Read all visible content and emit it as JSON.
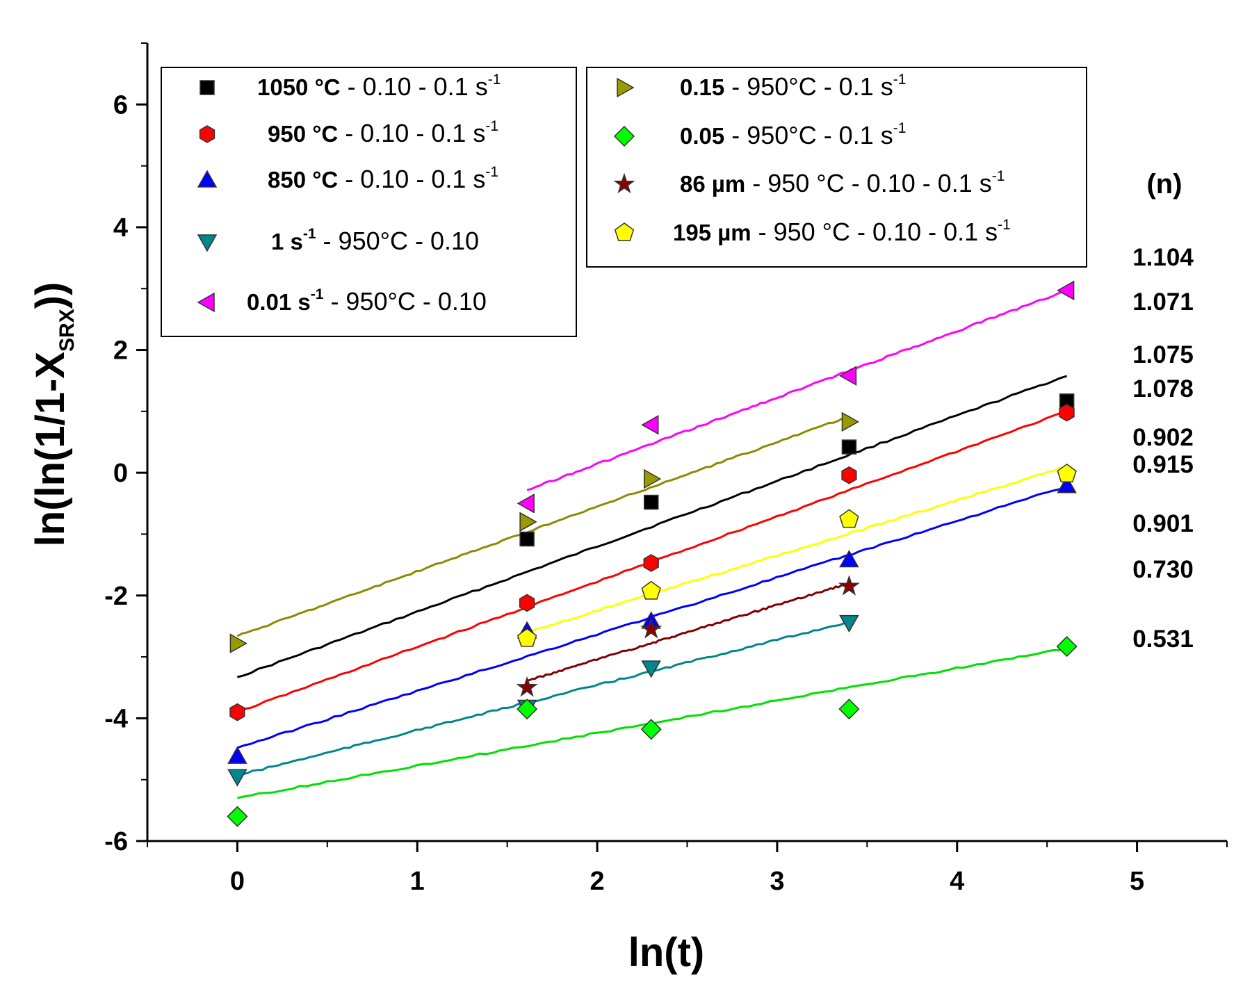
{
  "chart_data": {
    "type": "scatter",
    "xlabel": "ln(t)",
    "ylabel_main": "ln(ln(1/1-X",
    "ylabel_sub": "SRX",
    "ylabel_end": "))",
    "xlim": [
      -0.5,
      5.5
    ],
    "ylim": [
      -6,
      7
    ],
    "xticks": [
      "0",
      "1",
      "2",
      "3",
      "4",
      "5"
    ],
    "yticks": [
      "6",
      "4",
      "2",
      "0",
      "-2",
      "-4",
      "-6"
    ],
    "n_header": "(n)",
    "n_values": [
      "1.104",
      "1.071",
      "1.075",
      "1.078",
      "0.902",
      "0.915",
      "0.901",
      "0.730",
      "0.531"
    ],
    "series": [
      {
        "name": "1050 °C - 0.10 - 0.1 s-1",
        "bold": "1050 °C",
        "rest": " - 0.10 - 0.1 s",
        "sup": "-1",
        "tail": "",
        "marker": "square",
        "color": "#000000",
        "line_color": "#000000",
        "x": [
          1.61,
          2.3,
          3.4,
          4.61
        ],
        "y": [
          -1.08,
          -0.48,
          0.42,
          1.17
        ],
        "fit": [
          [
            0,
            -3.33
          ],
          [
            4.61,
            1.58
          ]
        ]
      },
      {
        "name": "950 °C - 0.10 - 0.1 s-1",
        "bold": "950 °C",
        "rest": " - 0.10 - 0.1 s",
        "sup": "-1",
        "tail": "",
        "marker": "hexagon",
        "color": "#ff0000",
        "line_color": "#ff0000",
        "x": [
          0,
          1.61,
          2.3,
          3.4,
          4.61
        ],
        "y": [
          -3.9,
          -2.12,
          -1.47,
          -0.04,
          0.98
        ],
        "fit": [
          [
            0,
            -3.9
          ],
          [
            4.61,
            1.0
          ]
        ]
      },
      {
        "name": "850 °C - 0.10 - 0.1 s-1",
        "bold": "850 °C",
        "rest": " - 0.10 - 0.1 s",
        "sup": "-1",
        "tail": "",
        "marker": "triangle-up",
        "color": "#0000ff",
        "line_color": "#0000ff",
        "x": [
          0,
          1.61,
          2.3,
          3.4,
          4.61
        ],
        "y": [
          -4.62,
          -2.58,
          -2.42,
          -1.42,
          -0.21
        ],
        "fit": [
          [
            0,
            -4.48
          ],
          [
            4.61,
            -0.22
          ]
        ]
      },
      {
        "name": "1 s-1 - 950°C - 0.10",
        "bold": "1 s",
        "bold_sup": "-1",
        "rest": "  -  950°C - 0.10",
        "sup": "",
        "tail": "",
        "marker": "triangle-down",
        "color": "#00868b",
        "line_color": "#00868b",
        "x": [
          0,
          1.61,
          2.3,
          3.4
        ],
        "y": [
          -4.95,
          -3.82,
          -3.18,
          -2.44
        ],
        "fit": [
          [
            0,
            -4.93
          ],
          [
            3.4,
            -2.43
          ]
        ]
      },
      {
        "name": "0.01 s-1 - 950°C - 0.10",
        "bold": "0.01 s",
        "bold_sup": "-1",
        "rest": " - 950°C - 0.10",
        "sup": "",
        "tail": "",
        "marker": "triangle-left",
        "color": "#ff00ff",
        "line_color": "#ff00ff",
        "x": [
          1.61,
          2.3,
          3.4,
          4.61
        ],
        "y": [
          -0.5,
          0.78,
          1.58,
          2.97
        ],
        "fit": [
          [
            1.61,
            -0.28
          ],
          [
            4.61,
            2.97
          ]
        ]
      },
      {
        "name": "0.15 - 950°C - 0.1 s-1",
        "bold": "0.15",
        "rest": "  -  950°C - 0.1 s",
        "sup": "-1",
        "tail": "",
        "marker": "triangle-right",
        "color": "#999900",
        "line_color": "#8b8b00",
        "x": [
          0,
          1.61,
          2.3,
          3.4
        ],
        "y": [
          -2.78,
          -0.8,
          -0.1,
          0.83
        ],
        "fit": [
          [
            0,
            -2.66
          ],
          [
            3.4,
            0.92
          ]
        ]
      },
      {
        "name": "0.05 - 950°C - 0.1 s-1",
        "bold": "0.05",
        "rest": "  -  950°C - 0.1 s",
        "sup": "-1",
        "tail": "",
        "marker": "diamond",
        "color": "#00ff00",
        "line_color": "#00e000",
        "x": [
          0,
          1.61,
          2.3,
          3.4,
          4.61
        ],
        "y": [
          -5.6,
          -3.85,
          -4.18,
          -3.85,
          -2.83
        ],
        "fit": [
          [
            0,
            -5.3
          ],
          [
            4.61,
            -2.86
          ]
        ]
      },
      {
        "name": "86 µm - 950 °C - 0.10 - 0.1 s-1",
        "bold": "86 µm",
        "rest": " - 950 °C - 0.10 - 0.1 s",
        "sup": "-1",
        "tail": "",
        "marker": "star",
        "color": "#8b0000",
        "line_color": "#800000",
        "x": [
          1.61,
          2.3,
          3.4
        ],
        "y": [
          -3.5,
          -2.55,
          -1.85
        ],
        "fit": [
          [
            1.61,
            -3.39
          ],
          [
            3.4,
            -1.8
          ]
        ]
      },
      {
        "name": "195 µm - 950 °C - 0.10 - 0.1 s-1",
        "bold": "195 µm",
        "rest": " - 950 °C - 0.10 - 0.1 s",
        "sup": "-1",
        "tail": "",
        "marker": "pentagon",
        "color": "#ffff00",
        "line_color": "#ffff00",
        "x": [
          1.61,
          2.3,
          3.4,
          4.61
        ],
        "y": [
          -2.7,
          -1.93,
          -0.76,
          -0.02
        ],
        "fit": [
          [
            1.61,
            -2.6
          ],
          [
            4.61,
            0.1
          ]
        ]
      }
    ],
    "legend_placement": "top, two boxes"
  }
}
